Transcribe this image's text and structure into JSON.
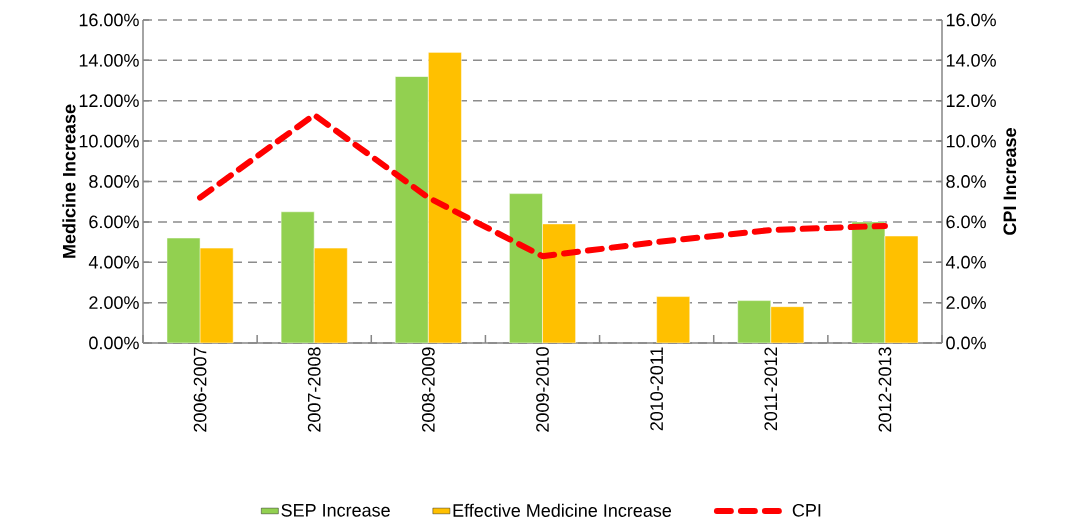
{
  "chart_data": {
    "type": "bar",
    "categories": [
      "2006-2007",
      "2007-2008",
      "2008-2009",
      "2009-2010",
      "2010-2011",
      "2011-2012",
      "2012-2013"
    ],
    "ylabel": "Medicine Increase",
    "y2label": "CPI Increase",
    "ylim": [
      0,
      16
    ],
    "yticks": [
      {
        "value": 0,
        "label": "0.00%"
      },
      {
        "value": 2,
        "label": "2.00%"
      },
      {
        "value": 4,
        "label": "4.00%"
      },
      {
        "value": 6,
        "label": "6.00%"
      },
      {
        "value": 8,
        "label": "8.00%"
      },
      {
        "value": 10,
        "label": "10.00%"
      },
      {
        "value": 12,
        "label": "12.00%"
      },
      {
        "value": 14,
        "label": "14.00%"
      },
      {
        "value": 16,
        "label": "16.00%"
      }
    ],
    "y2lim": [
      0,
      16
    ],
    "y2ticks": [
      {
        "value": 0,
        "label": "0.0%"
      },
      {
        "value": 2,
        "label": "2.0%"
      },
      {
        "value": 4,
        "label": "4.0%"
      },
      {
        "value": 6,
        "label": "6.0%"
      },
      {
        "value": 8,
        "label": "8.0%"
      },
      {
        "value": 10,
        "label": "10.0%"
      },
      {
        "value": 12,
        "label": "12.0%"
      },
      {
        "value": 14,
        "label": "14.0%"
      },
      {
        "value": 16,
        "label": "16.0%"
      }
    ],
    "grid": "y",
    "legend": "bottom",
    "series": [
      {
        "name": "SEP Increase",
        "color": "#92d050",
        "values": [
          5.2,
          6.5,
          13.2,
          7.4,
          null,
          2.1,
          6.0
        ]
      },
      {
        "name": "Effective Medicine Increase",
        "color": "#ffc000",
        "values": [
          4.7,
          4.7,
          14.4,
          5.9,
          2.3,
          1.8,
          5.3
        ]
      },
      {
        "name": "CPI",
        "type": "line",
        "axis": "y2",
        "color": "#ff0000",
        "line_style": "dashed",
        "marker": "none",
        "values": [
          7.2,
          11.3,
          7.2,
          4.3,
          5.0,
          5.6,
          5.8
        ]
      }
    ]
  }
}
